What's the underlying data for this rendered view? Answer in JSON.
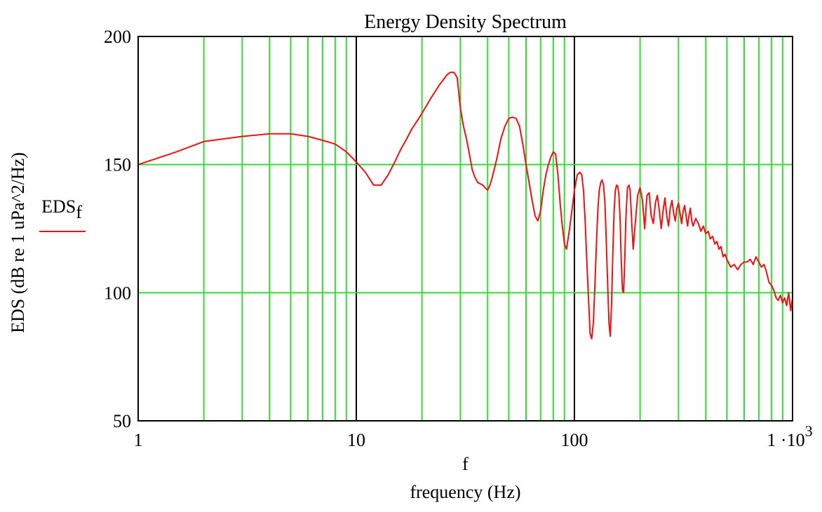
{
  "chart_data": {
    "type": "line",
    "title": "Energy Density Spectrum",
    "xlabel": "f",
    "xlabel2": "frequency (Hz)",
    "ylabel": "EDS (dB re 1 uPa^2/Hz)",
    "xscale": "log",
    "xlim": [
      1,
      1000
    ],
    "ylim": [
      50,
      200
    ],
    "grid": true,
    "grid_color": "#33dd33",
    "decade_grid_color": "#000000",
    "line_color": "#ee1111",
    "x_tick_labels": [
      "1",
      "10",
      "100"
    ],
    "x_tick_last": {
      "base": "1 ·10",
      "exponent": "3"
    },
    "y_tick_labels": [
      "50",
      "100",
      "150",
      "200"
    ],
    "legend": {
      "placement": "left",
      "label": "EDS",
      "subscript": "f"
    },
    "series": [
      {
        "name": "EDS",
        "x": [
          1,
          1.5,
          2,
          3,
          4,
          5,
          6,
          7,
          8,
          9,
          10,
          11,
          12,
          13,
          14,
          15,
          16,
          17,
          18,
          19,
          20,
          22,
          24,
          25,
          26,
          27,
          28,
          29,
          30,
          31,
          32,
          33,
          34,
          35,
          36,
          38,
          40,
          41,
          42,
          44,
          46,
          48,
          50,
          52,
          54,
          56,
          58,
          60,
          62,
          64,
          66,
          68,
          70,
          72,
          74,
          76,
          78,
          80,
          82,
          84,
          86,
          88,
          90,
          92,
          95,
          98,
          100,
          103,
          106,
          108,
          110,
          112,
          114,
          116,
          118,
          120,
          122,
          124,
          126,
          128,
          130,
          132,
          134,
          136,
          138,
          140,
          142,
          144,
          146,
          148,
          150,
          152,
          154,
          156,
          158,
          160,
          162,
          164,
          166,
          168,
          170,
          172,
          175,
          178,
          180,
          183,
          186,
          190,
          195,
          200,
          205,
          210,
          215,
          220,
          225,
          230,
          235,
          240,
          245,
          250,
          255,
          260,
          265,
          270,
          275,
          280,
          285,
          290,
          295,
          300,
          305,
          310,
          315,
          320,
          325,
          330,
          335,
          340,
          345,
          350,
          360,
          370,
          380,
          390,
          400,
          410,
          420,
          430,
          440,
          450,
          460,
          470,
          480,
          490,
          500,
          520,
          540,
          560,
          580,
          600,
          620,
          640,
          660,
          680,
          700,
          720,
          740,
          760,
          780,
          800,
          820,
          840,
          860,
          880,
          900,
          920,
          940,
          960,
          980,
          1000
        ],
        "y": [
          150,
          155,
          159,
          161,
          162,
          162,
          161,
          159.5,
          158,
          155,
          151,
          147,
          142,
          142,
          146,
          151,
          156,
          160,
          164,
          167,
          170,
          176,
          181,
          183,
          185,
          186,
          186,
          184,
          172,
          165,
          160,
          154,
          148,
          145,
          143,
          142,
          140,
          142,
          145,
          152,
          160,
          165,
          168,
          168.5,
          168,
          165,
          158,
          150,
          143,
          136,
          130,
          128,
          132,
          140,
          146,
          150,
          153,
          155,
          154,
          146,
          135,
          126,
          119,
          117,
          125,
          134,
          140,
          146,
          147,
          146,
          140,
          128,
          112,
          98,
          84,
          82,
          88,
          102,
          118,
          132,
          140,
          143,
          144,
          142,
          135,
          120,
          103,
          88,
          83,
          96,
          116,
          132,
          140,
          142,
          141.5,
          138,
          128,
          112,
          101,
          100,
          112,
          128,
          141,
          142,
          140,
          128,
          117,
          127,
          138,
          141,
          136,
          125,
          138,
          139,
          130,
          127,
          135,
          138,
          132,
          125,
          132,
          137,
          130,
          126,
          133,
          136,
          131,
          128,
          133,
          135,
          131,
          127,
          132,
          134,
          130,
          126,
          130,
          133,
          128,
          126,
          129,
          127,
          124,
          126,
          123,
          124,
          121,
          122,
          119,
          120,
          117,
          118,
          114,
          115,
          113,
          110,
          111,
          109,
          111,
          112,
          112,
          113,
          111,
          114,
          112,
          110,
          111,
          108,
          104,
          103,
          101,
          98,
          97,
          99,
          96,
          98,
          95,
          100,
          93,
          98
        ]
      }
    ]
  }
}
